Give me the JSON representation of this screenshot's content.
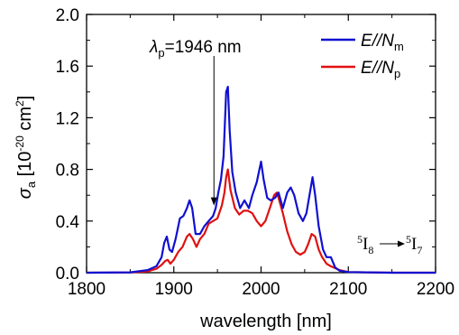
{
  "chart_data": {
    "type": "line",
    "xlabel": "wavelength [nm]",
    "ylabel": {
      "base": "σ",
      "sub": "a",
      "open": " [10",
      "exp": "-20",
      "unit": " cm",
      "unit_exp": "2",
      "close": "]"
    },
    "xlim": [
      1800,
      2200
    ],
    "ylim": [
      0,
      2.0
    ],
    "x_ticks": [
      "1800",
      "1900",
      "2000",
      "2100",
      "2200"
    ],
    "y_ticks": [
      "0.0",
      "0.4",
      "0.8",
      "1.2",
      "1.6",
      "2.0"
    ],
    "legend_position": "top-right",
    "series": [
      {
        "name_base": "E//N",
        "name_sub": "m",
        "color": "#1010d0",
        "x": [
          1800,
          1850,
          1870,
          1880,
          1886,
          1889,
          1892,
          1895,
          1898,
          1902,
          1907,
          1911,
          1915,
          1918,
          1921,
          1925,
          1930,
          1935,
          1940,
          1945,
          1948,
          1951,
          1954,
          1957,
          1960,
          1962,
          1964,
          1967,
          1971,
          1976,
          1981,
          1986,
          1990,
          1995,
          2000,
          2003,
          2007,
          2011,
          2016,
          2020,
          2025,
          2030,
          2034,
          2038,
          2043,
          2048,
          2052,
          2056,
          2059,
          2062,
          2066,
          2071,
          2075,
          2080,
          2085,
          2090,
          2100,
          2150,
          2200
        ],
        "y": [
          0.0,
          0.003,
          0.02,
          0.05,
          0.12,
          0.23,
          0.28,
          0.18,
          0.16,
          0.26,
          0.42,
          0.44,
          0.5,
          0.56,
          0.5,
          0.3,
          0.3,
          0.36,
          0.4,
          0.44,
          0.5,
          0.62,
          0.72,
          0.9,
          1.4,
          1.44,
          1.1,
          0.78,
          0.62,
          0.5,
          0.56,
          0.5,
          0.6,
          0.7,
          0.86,
          0.72,
          0.58,
          0.56,
          0.58,
          0.62,
          0.5,
          0.62,
          0.66,
          0.6,
          0.46,
          0.4,
          0.46,
          0.62,
          0.74,
          0.6,
          0.36,
          0.18,
          0.12,
          0.12,
          0.04,
          0.015,
          0.005,
          0.0,
          0.0
        ]
      },
      {
        "name_base": "E//N",
        "name_sub": "p",
        "color": "#e01010",
        "x": [
          1800,
          1850,
          1870,
          1880,
          1886,
          1890,
          1893,
          1896,
          1900,
          1905,
          1910,
          1915,
          1918,
          1922,
          1926,
          1930,
          1935,
          1940,
          1945,
          1950,
          1955,
          1958,
          1960,
          1962,
          1965,
          1970,
          1975,
          1980,
          1985,
          1990,
          1995,
          2000,
          2005,
          2010,
          2015,
          2018,
          2020,
          2025,
          2030,
          2035,
          2040,
          2045,
          2050,
          2054,
          2058,
          2062,
          2066,
          2070,
          2075,
          2080,
          2090,
          2100,
          2150,
          2200
        ],
        "y": [
          0.0,
          0.002,
          0.01,
          0.03,
          0.06,
          0.09,
          0.1,
          0.07,
          0.1,
          0.16,
          0.2,
          0.28,
          0.3,
          0.26,
          0.2,
          0.26,
          0.3,
          0.38,
          0.4,
          0.42,
          0.52,
          0.62,
          0.74,
          0.8,
          0.64,
          0.5,
          0.45,
          0.48,
          0.48,
          0.46,
          0.4,
          0.36,
          0.4,
          0.5,
          0.6,
          0.62,
          0.58,
          0.46,
          0.32,
          0.22,
          0.16,
          0.14,
          0.16,
          0.22,
          0.3,
          0.28,
          0.18,
          0.12,
          0.07,
          0.05,
          0.02,
          0.005,
          0.0,
          0.0
        ]
      }
    ],
    "annotations": {
      "pump": {
        "label_base": "λ",
        "label_sub": "p",
        "label_rest": "=1946 nm",
        "x": 1946,
        "y": 0.52
      },
      "transition": {
        "from_sup": "5",
        "from_base": "I",
        "from_sub": "8",
        "to_sup": "5",
        "to_base": "I",
        "to_sub": "7"
      }
    }
  }
}
